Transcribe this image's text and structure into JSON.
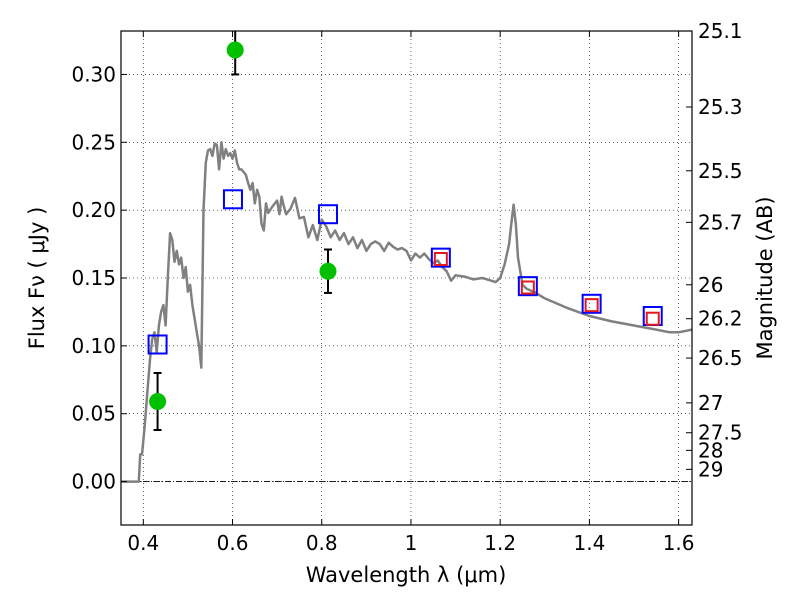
{
  "chart_data": {
    "type": "scatter",
    "title": "",
    "xlabel": "Wavelength  λ (μm)",
    "ylabel": "Flux  Fν  ( μJy )",
    "y2label": "Magnitude (AB)",
    "xlim": [
      0.35,
      1.63
    ],
    "ylim": [
      -0.032,
      0.332
    ],
    "grid": true,
    "x_ticks": [
      0.4,
      0.6,
      0.8,
      1.0,
      1.2,
      1.4,
      1.6
    ],
    "x_tick_labels": [
      "0.4",
      "0.6",
      "0.8",
      "1",
      "1.2",
      "1.4",
      "1.6"
    ],
    "y_ticks": [
      0.0,
      0.05,
      0.1,
      0.15,
      0.2,
      0.25,
      0.3
    ],
    "y_tick_labels": [
      "0.00",
      "0.05",
      "0.10",
      "0.15",
      "0.20",
      "0.25",
      "0.30"
    ],
    "y2_ticks": [
      {
        "label": "25.1",
        "flux": 0.332
      },
      {
        "label": "25.3",
        "flux": 0.276
      },
      {
        "label": "25.5",
        "flux": 0.229
      },
      {
        "label": "25.7",
        "flux": 0.191
      },
      {
        "label": "26",
        "flux": 0.145
      },
      {
        "label": "26.2",
        "flux": 0.12
      },
      {
        "label": "26.5",
        "flux": 0.091
      },
      {
        "label": "27",
        "flux": 0.058
      },
      {
        "label": "27.5",
        "flux": 0.036
      },
      {
        "label": "28",
        "flux": 0.023
      },
      {
        "label": "29",
        "flux": 0.009
      }
    ],
    "series": [
      {
        "type": "line",
        "color": "#808080",
        "x": [
          0.35,
          0.39,
          0.393,
          0.397,
          0.403,
          0.41,
          0.415,
          0.42,
          0.425,
          0.43,
          0.435,
          0.44,
          0.445,
          0.45,
          0.455,
          0.46,
          0.465,
          0.47,
          0.475,
          0.48,
          0.485,
          0.49,
          0.495,
          0.5,
          0.505,
          0.51,
          0.515,
          0.52,
          0.525,
          0.53,
          0.535,
          0.54,
          0.545,
          0.55,
          0.555,
          0.56,
          0.565,
          0.57,
          0.575,
          0.58,
          0.585,
          0.59,
          0.595,
          0.6,
          0.605,
          0.61,
          0.615,
          0.62,
          0.625,
          0.63,
          0.635,
          0.64,
          0.645,
          0.65,
          0.655,
          0.66,
          0.665,
          0.67,
          0.675,
          0.68,
          0.69,
          0.7,
          0.705,
          0.71,
          0.715,
          0.72,
          0.73,
          0.74,
          0.75,
          0.76,
          0.77,
          0.78,
          0.79,
          0.8,
          0.81,
          0.82,
          0.83,
          0.84,
          0.85,
          0.86,
          0.87,
          0.88,
          0.89,
          0.9,
          0.91,
          0.92,
          0.93,
          0.94,
          0.95,
          0.96,
          0.97,
          0.98,
          0.99,
          1.0,
          1.01,
          1.02,
          1.03,
          1.04,
          1.05,
          1.06,
          1.07,
          1.08,
          1.09,
          1.1,
          1.12,
          1.14,
          1.16,
          1.18,
          1.19,
          1.2,
          1.21,
          1.22,
          1.225,
          1.23,
          1.235,
          1.24,
          1.25,
          1.26,
          1.28,
          1.3,
          1.35,
          1.4,
          1.45,
          1.5,
          1.55,
          1.58,
          1.6,
          1.63
        ],
        "y": [
          0.0,
          0.0,
          0.02,
          0.02,
          0.04,
          0.07,
          0.09,
          0.105,
          0.11,
          0.095,
          0.115,
          0.125,
          0.13,
          0.115,
          0.15,
          0.183,
          0.178,
          0.162,
          0.17,
          0.16,
          0.165,
          0.15,
          0.158,
          0.14,
          0.145,
          0.13,
          0.12,
          0.11,
          0.1,
          0.084,
          0.2,
          0.235,
          0.244,
          0.245,
          0.24,
          0.249,
          0.248,
          0.23,
          0.25,
          0.238,
          0.245,
          0.24,
          0.242,
          0.238,
          0.244,
          0.235,
          0.23,
          0.23,
          0.228,
          0.226,
          0.22,
          0.215,
          0.22,
          0.205,
          0.215,
          0.21,
          0.19,
          0.185,
          0.205,
          0.198,
          0.203,
          0.207,
          0.197,
          0.21,
          0.203,
          0.197,
          0.201,
          0.209,
          0.194,
          0.195,
          0.18,
          0.189,
          0.178,
          0.193,
          0.188,
          0.18,
          0.185,
          0.178,
          0.183,
          0.175,
          0.18,
          0.172,
          0.178,
          0.17,
          0.175,
          0.177,
          0.175,
          0.17,
          0.176,
          0.173,
          0.171,
          0.172,
          0.17,
          0.163,
          0.168,
          0.165,
          0.168,
          0.164,
          0.161,
          0.163,
          0.158,
          0.155,
          0.148,
          0.152,
          0.151,
          0.149,
          0.15,
          0.148,
          0.147,
          0.15,
          0.16,
          0.175,
          0.19,
          0.204,
          0.19,
          0.165,
          0.145,
          0.142,
          0.139,
          0.135,
          0.128,
          0.122,
          0.118,
          0.115,
          0.112,
          0.11,
          0.11,
          0.112
        ]
      },
      {
        "type": "open-square",
        "color": "#0000ff",
        "x": [
          0.432,
          0.601,
          0.814,
          1.067,
          1.262,
          1.405,
          1.542
        ],
        "y": [
          0.101,
          0.208,
          0.197,
          0.165,
          0.144,
          0.131,
          0.122
        ]
      },
      {
        "type": "open-square",
        "color": "#e31a1c",
        "x": [
          1.067,
          1.262,
          1.405,
          1.542
        ],
        "y": [
          0.164,
          0.143,
          0.13,
          0.12
        ]
      },
      {
        "type": "point-errorbar",
        "color": "#00c000",
        "x": [
          0.432,
          0.606,
          0.814
        ],
        "y": [
          0.059,
          0.318,
          0.155
        ],
        "yerr": [
          0.021,
          0.018,
          0.016
        ]
      }
    ]
  }
}
